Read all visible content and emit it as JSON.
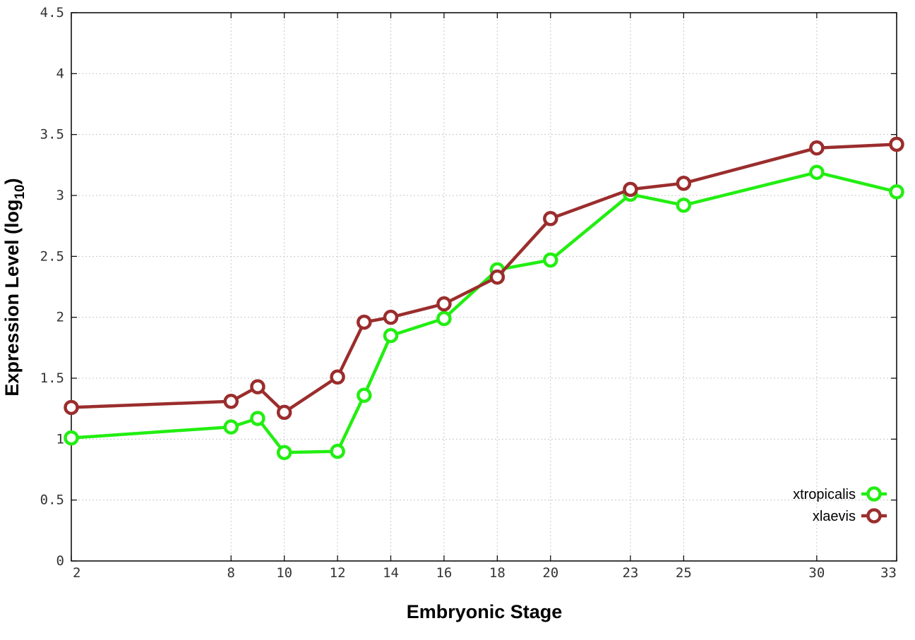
{
  "chart_data": {
    "type": "line",
    "title": "",
    "xlabel": "Embryonic Stage",
    "ylabel_main": "Expression Level (log",
    "ylabel_sub": "10",
    "ylabel_close": ")",
    "x": [
      2,
      8,
      9,
      10,
      12,
      13,
      14,
      16,
      18,
      20,
      23,
      25,
      30,
      33
    ],
    "x_ticks": [
      "2",
      "8",
      "10",
      "12",
      "14",
      "16",
      "18",
      "20",
      "23",
      "25",
      "30",
      "33"
    ],
    "y_ticks": [
      "0",
      "0.5",
      "1",
      "1.5",
      "2",
      "2.5",
      "3",
      "3.5",
      "4",
      "4.5"
    ],
    "xlim": [
      2,
      33
    ],
    "ylim": [
      0,
      4.5
    ],
    "grid": true,
    "legend_position": "bottom-right",
    "series": [
      {
        "name": "xtropicalis",
        "color": "#22ee11",
        "values": [
          1.01,
          1.1,
          1.17,
          0.89,
          0.9,
          1.36,
          1.85,
          1.99,
          2.39,
          2.47,
          3.01,
          2.92,
          3.19,
          3.03
        ]
      },
      {
        "name": "xlaevis",
        "color": "#9b2d2d",
        "values": [
          1.26,
          1.31,
          1.43,
          1.22,
          1.51,
          1.96,
          2.0,
          2.11,
          2.33,
          2.81,
          3.05,
          3.1,
          3.39,
          3.42
        ]
      }
    ]
  }
}
